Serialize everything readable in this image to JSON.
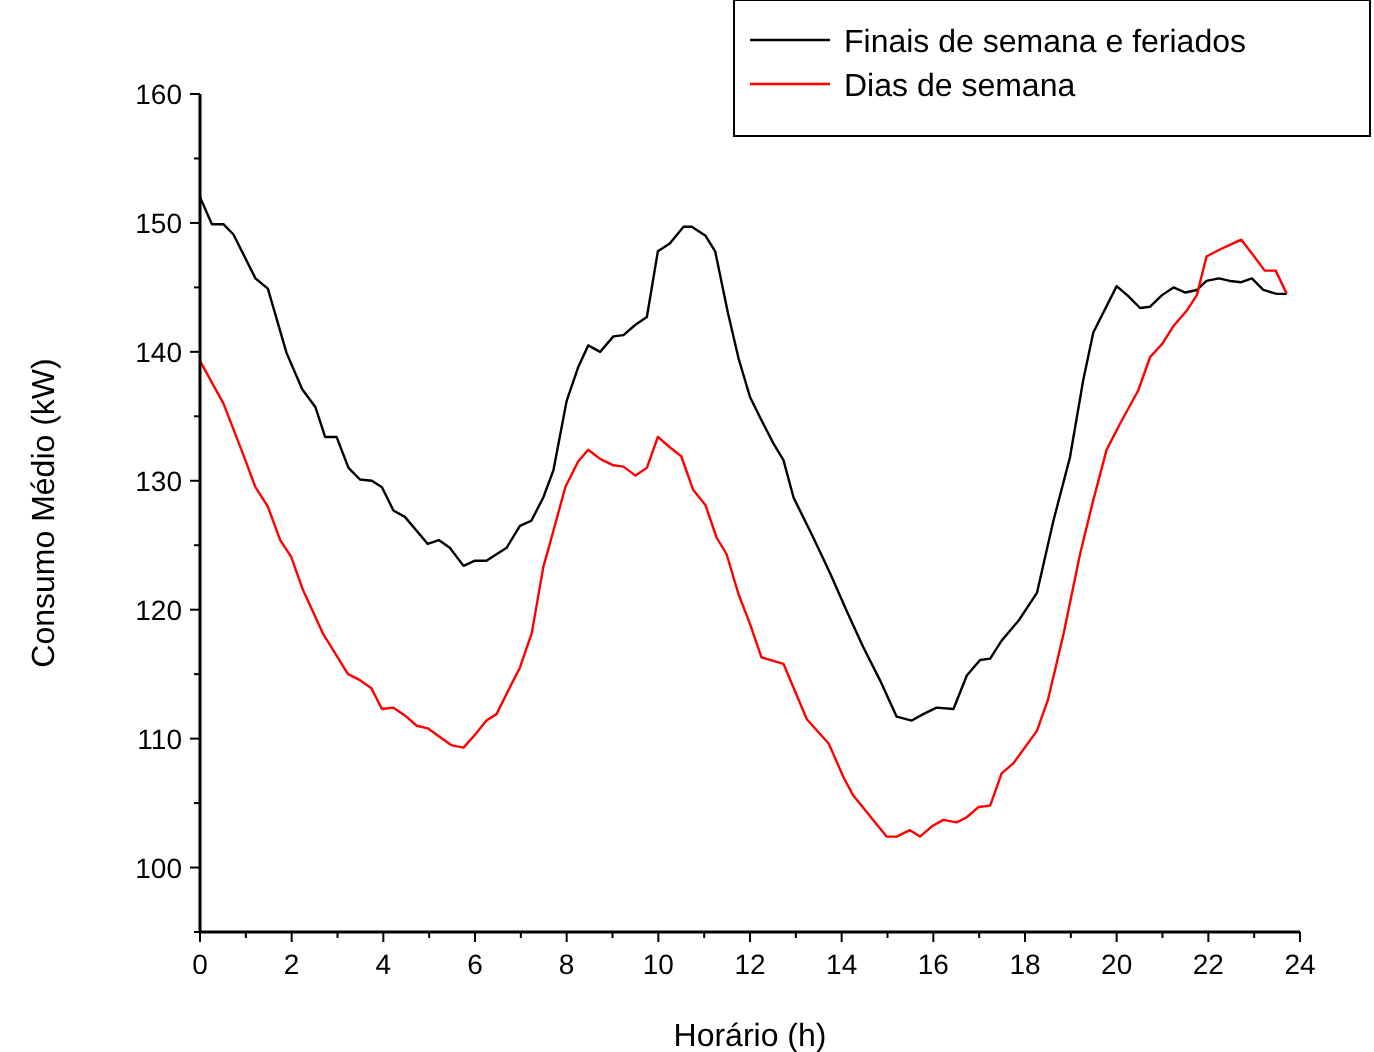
{
  "chart_data": {
    "type": "line",
    "xlabel": "Horário (h)",
    "ylabel": "Consumo Médio (kW)",
    "xlim": [
      0,
      24
    ],
    "xticks": [
      0,
      {
        "value": 1,
        "label": null
      },
      2,
      {
        "value": 3,
        "label": null
      },
      4,
      {
        "value": 5,
        "label": null
      },
      6,
      {
        "value": 7,
        "label": null
      },
      8,
      {
        "value": 9,
        "label": null
      },
      10,
      {
        "value": 11,
        "label": null
      },
      12,
      {
        "value": 13,
        "label": null
      },
      14,
      {
        "value": 15,
        "label": null
      },
      16,
      {
        "value": 17,
        "label": null
      },
      18,
      {
        "value": 19,
        "label": null
      },
      20,
      {
        "value": 21,
        "label": null
      },
      22,
      {
        "value": 23,
        "label": null
      },
      24
    ],
    "ylim": [
      95,
      160
    ],
    "yticks": [
      {
        "value": 95,
        "label": null
      },
      100,
      {
        "value": 105,
        "label": null
      },
      110,
      {
        "value": 115,
        "label": null
      },
      120,
      {
        "value": 125,
        "label": null
      },
      130,
      {
        "value": 135,
        "label": null
      },
      140,
      {
        "value": 145,
        "label": null
      },
      150,
      {
        "value": 155,
        "label": null
      },
      160
    ],
    "grid": false,
    "legend": "top right",
    "marker": "none",
    "line_style": "solid",
    "series": [
      {
        "name": "Finais de semana e feriados",
        "color": "#000000",
        "x": [
          0,
          0.26,
          0.51,
          0.73,
          1.21,
          1.48,
          1.89,
          2.23,
          2.52,
          2.73,
          2.98,
          3.24,
          3.49,
          3.75,
          3.97,
          4.22,
          4.47,
          4.97,
          5.21,
          5.45,
          5.75,
          6.0,
          6.25,
          6.69,
          6.98,
          7.23,
          7.49,
          7.71,
          8.0,
          8.25,
          8.47,
          8.73,
          9.02,
          9.24,
          9.5,
          9.75,
          9.99,
          10.25,
          10.55,
          10.73,
          11.03,
          11.24,
          11.52,
          11.75,
          12.0,
          12.25,
          12.51,
          12.73,
          12.95,
          13.38,
          13.75,
          14.11,
          14.47,
          14.84,
          15.2,
          15.53,
          15.78,
          16.07,
          16.44,
          16.73,
          17.02,
          17.24,
          17.49,
          17.87,
          18.26,
          18.62,
          18.98,
          19.27,
          19.49,
          20.0,
          20.26,
          20.51,
          20.73,
          20.99,
          21.24,
          21.5,
          21.75,
          21.96,
          22.23,
          22.47,
          22.72,
          22.95,
          23.2,
          23.49,
          23.71
        ],
        "values": [
          152.0,
          149.9,
          149.9,
          149.1,
          145.7,
          144.9,
          139.9,
          137.1,
          135.7,
          133.4,
          133.4,
          131.0,
          130.1,
          130.0,
          129.5,
          127.7,
          127.2,
          125.1,
          125.4,
          124.8,
          123.4,
          123.8,
          123.8,
          124.8,
          126.5,
          126.9,
          128.7,
          130.8,
          136.2,
          138.8,
          140.5,
          140.0,
          141.2,
          141.3,
          142.1,
          142.7,
          147.8,
          148.4,
          149.7,
          149.7,
          149.0,
          147.8,
          143.0,
          139.5,
          136.5,
          134.7,
          132.9,
          131.6,
          128.7,
          125.6,
          122.8,
          119.9,
          117.1,
          114.5,
          111.7,
          111.4,
          111.9,
          112.4,
          112.3,
          114.9,
          116.1,
          116.2,
          117.6,
          119.2,
          121.3,
          126.9,
          131.8,
          137.8,
          141.5,
          145.1,
          144.3,
          143.4,
          143.5,
          144.4,
          145.0,
          144.6,
          144.8,
          145.5,
          145.7,
          145.5,
          145.4,
          145.7,
          144.8,
          144.5,
          144.5
        ]
      },
      {
        "name": "Dias de semana",
        "color": "#ff0000",
        "x": [
          0,
          0.51,
          0.97,
          1.21,
          1.48,
          1.75,
          1.99,
          2.25,
          2.69,
          3.23,
          3.46,
          3.74,
          3.97,
          4.22,
          4.47,
          4.73,
          4.97,
          5.24,
          5.48,
          5.75,
          6.0,
          6.25,
          6.47,
          6.72,
          6.98,
          7.24,
          7.49,
          7.71,
          7.97,
          8.25,
          8.47,
          8.73,
          9.02,
          9.24,
          9.5,
          9.75,
          9.99,
          10.25,
          10.5,
          10.76,
          11.03,
          11.27,
          11.49,
          11.75,
          12.0,
          12.25,
          12.73,
          13.24,
          13.72,
          14.04,
          14.25,
          14.98,
          15.2,
          15.49,
          15.71,
          15.97,
          16.22,
          16.51,
          16.73,
          16.99,
          17.24,
          17.49,
          17.75,
          18.26,
          18.5,
          18.84,
          19.2,
          19.49,
          19.78,
          20.07,
          20.47,
          20.73,
          20.99,
          21.24,
          21.53,
          21.75,
          21.96,
          22.23,
          22.47,
          22.72,
          22.98,
          23.23,
          23.47,
          23.71
        ],
        "values": [
          139.3,
          136.0,
          131.8,
          129.5,
          128.0,
          125.4,
          124.1,
          121.5,
          118.1,
          115.0,
          114.6,
          113.9,
          112.3,
          112.4,
          111.8,
          111.0,
          110.8,
          110.1,
          109.5,
          109.3,
          110.3,
          111.4,
          111.9,
          113.7,
          115.5,
          118.2,
          123.3,
          126.1,
          129.5,
          131.5,
          132.4,
          131.7,
          131.2,
          131.1,
          130.4,
          131.0,
          133.4,
          132.6,
          131.9,
          129.3,
          128.1,
          125.6,
          124.3,
          121.2,
          118.9,
          116.3,
          115.8,
          111.5,
          109.6,
          107.0,
          105.6,
          102.4,
          102.4,
          102.9,
          102.4,
          103.2,
          103.7,
          103.5,
          103.9,
          104.7,
          104.8,
          107.3,
          108.1,
          110.6,
          113.0,
          118.1,
          124.3,
          128.5,
          132.4,
          134.4,
          137.0,
          139.6,
          140.6,
          142.0,
          143.2,
          144.4,
          147.4,
          147.9,
          148.3,
          148.7,
          147.5,
          146.3,
          146.3,
          144.5
        ]
      }
    ]
  }
}
